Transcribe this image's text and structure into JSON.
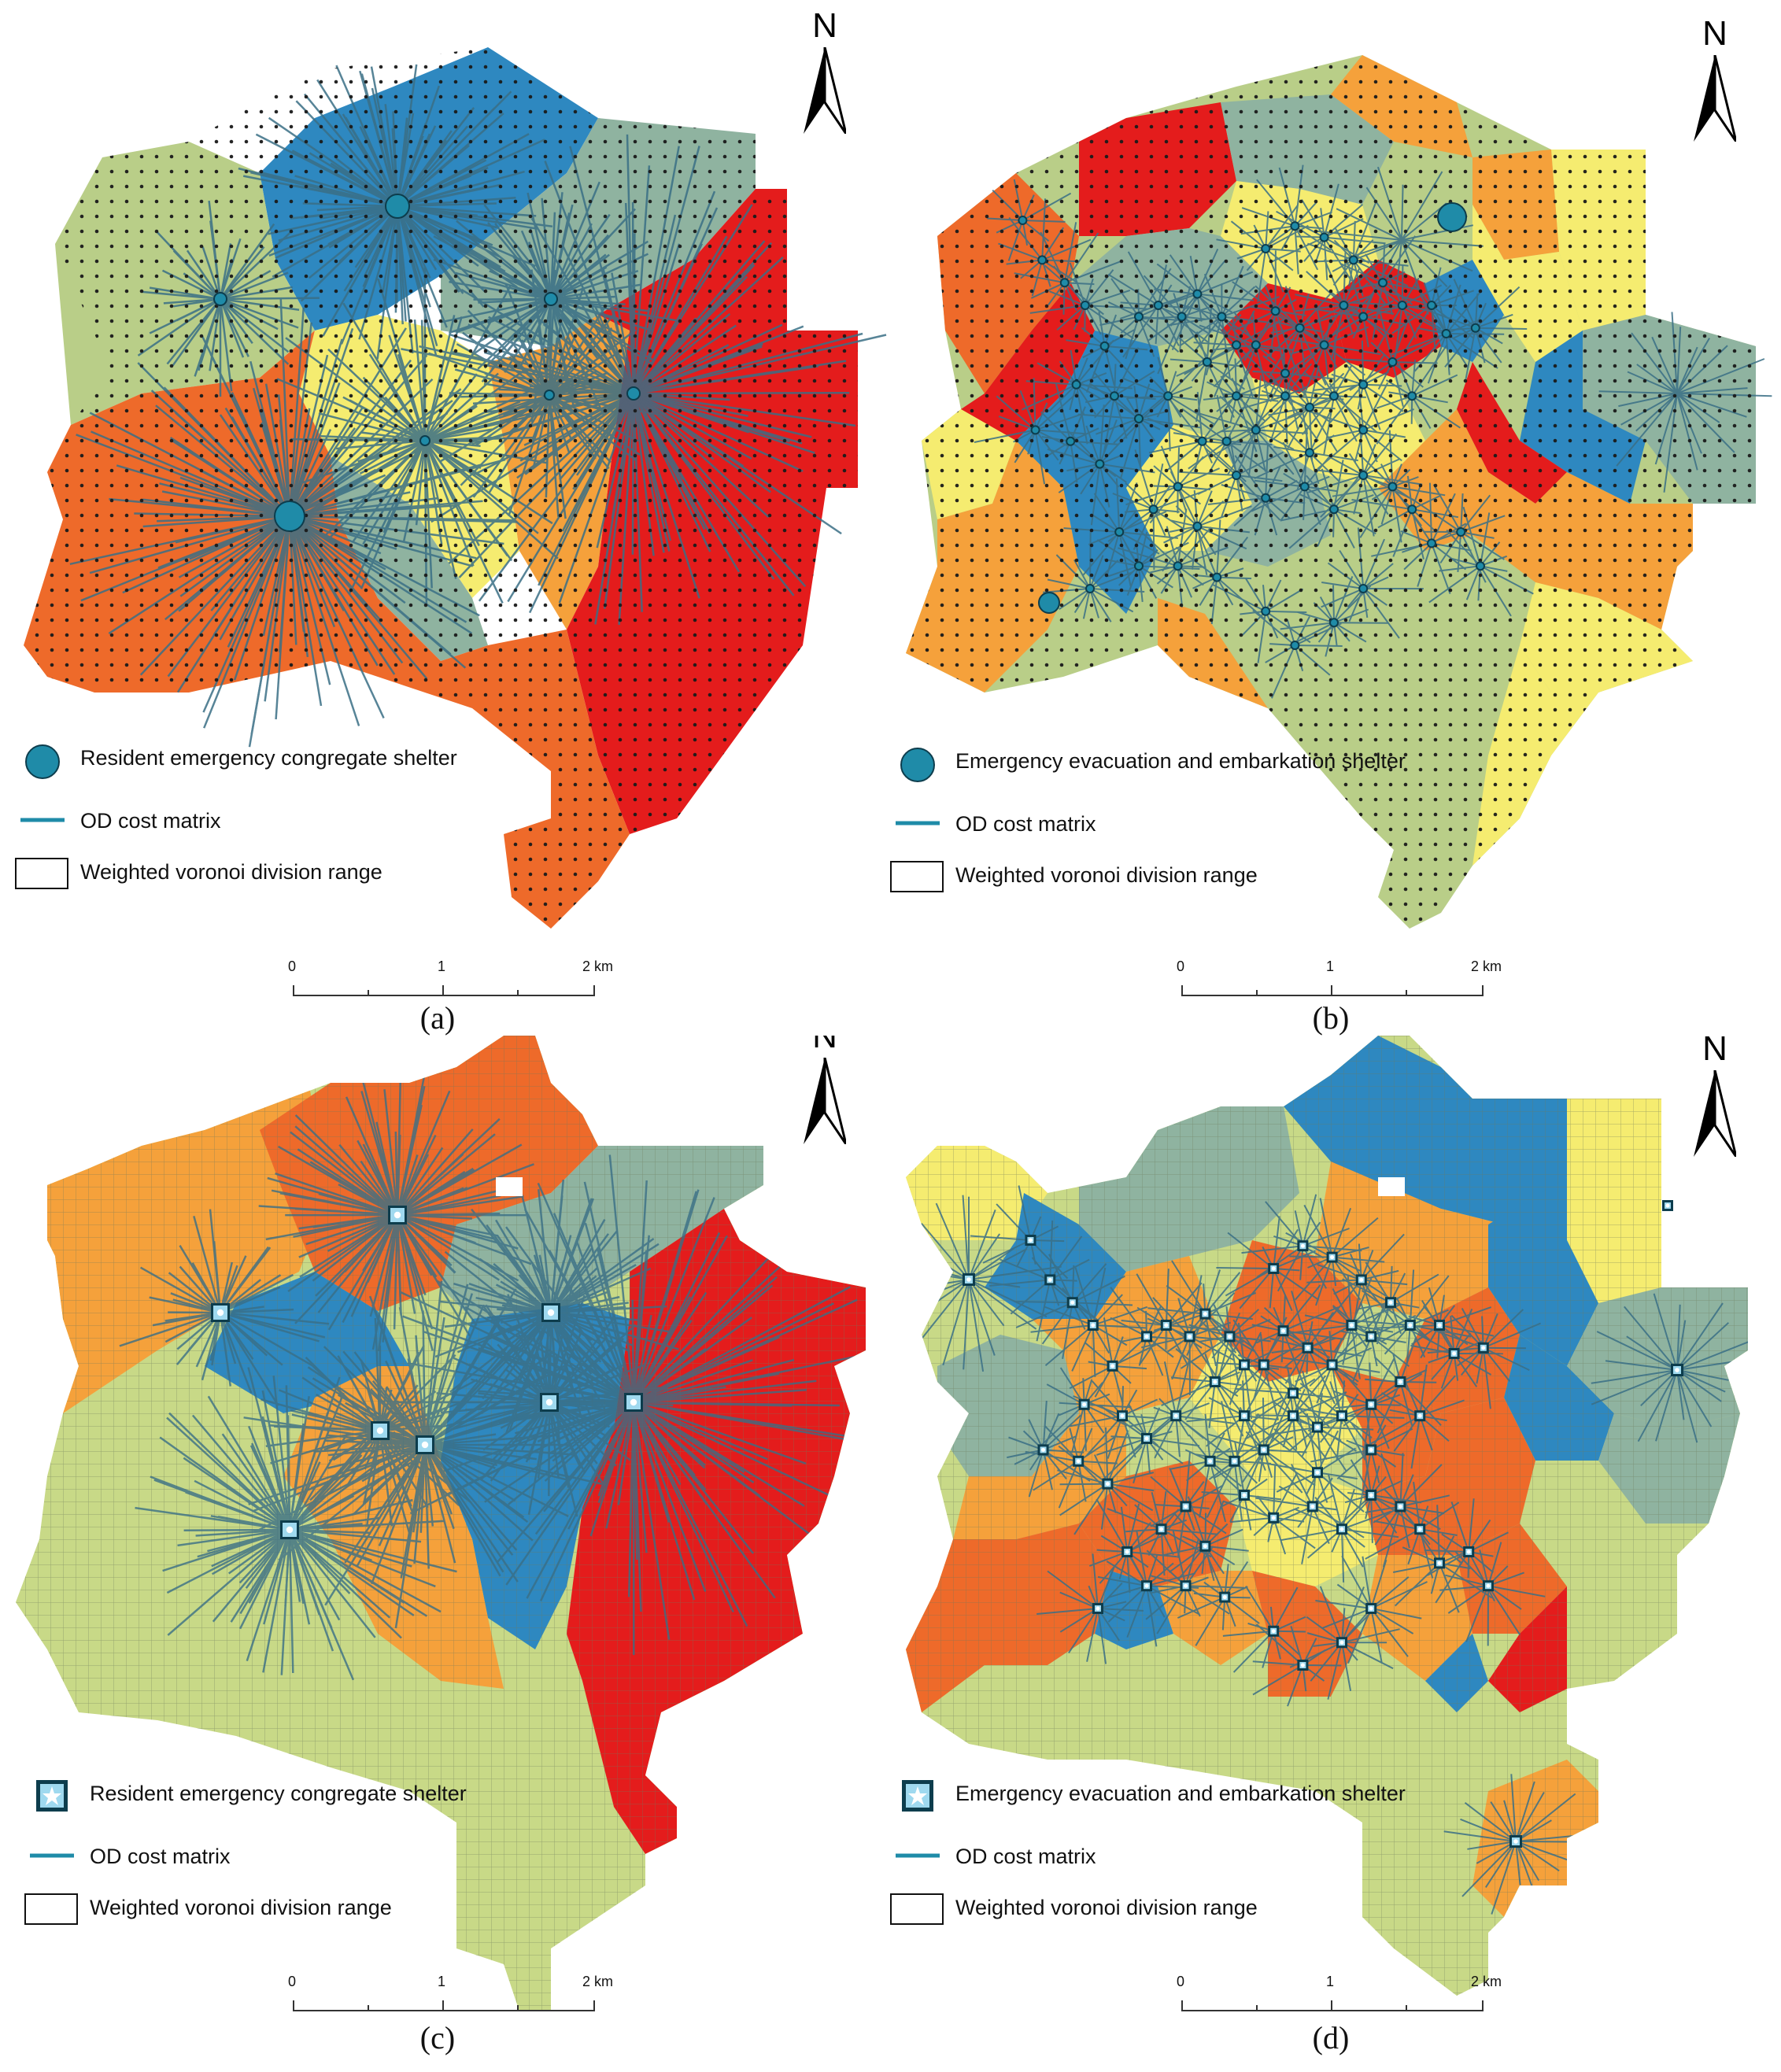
{
  "colors": {
    "blue": "#2e88c0",
    "teal_grey": "#8fb3a0",
    "sage": "#b9ce88",
    "light_green": "#c8d987",
    "yellow": "#f5ec70",
    "orange": "#f5a13b",
    "orange_red": "#ee6a2a",
    "red": "#e41c1c",
    "line": "#3a6f86",
    "shelter": "#1f8ba8"
  },
  "north_label": "N",
  "panels": [
    {
      "caption": "(a)",
      "legend": {
        "shelter_icon": "circle-icon",
        "shelter_label": "Resident emergency congregate shelter",
        "line_label": "OD cost matrix",
        "range_label": "Weighted voronoi division range"
      },
      "scale": {
        "t0": "0",
        "t1": "1",
        "t2": "2 km"
      }
    },
    {
      "caption": "(b)",
      "legend": {
        "shelter_icon": "circle-icon",
        "shelter_label": "Emergency evacuation and embarkation shelter",
        "line_label": "OD cost matrix",
        "range_label": "Weighted voronoi division range"
      },
      "scale": {
        "t0": "0",
        "t1": "1",
        "t2": "2 km"
      }
    },
    {
      "caption": "(c)",
      "legend": {
        "shelter_icon": "square-star-icon",
        "shelter_label": "Resident emergency congregate shelter",
        "line_label": "OD cost matrix",
        "range_label": "Weighted voronoi division range"
      },
      "scale": {
        "t0": "0",
        "t1": "1",
        "t2": "2 km"
      }
    },
    {
      "caption": "(d)",
      "legend": {
        "shelter_icon": "square-star-icon",
        "shelter_label": "Emergency evacuation and embarkation shelter",
        "line_label": "OD cost matrix",
        "range_label": "Weighted voronoi division range"
      },
      "scale": {
        "t0": "0",
        "t1": "1",
        "t2": "2 km"
      }
    }
  ]
}
